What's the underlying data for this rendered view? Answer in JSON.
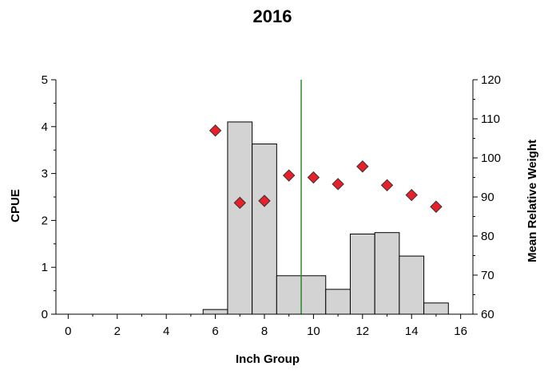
{
  "chart_data": {
    "type": "bar",
    "title": "2016",
    "xlabel": "Inch Group",
    "ylabel": "CPUE",
    "y2label": "Mean Relative Weight",
    "xlim": [
      -0.5,
      16.5
    ],
    "ylim": [
      0,
      5
    ],
    "y2lim": [
      60,
      120
    ],
    "x_ticks": [
      0,
      2,
      4,
      6,
      8,
      10,
      12,
      14,
      16
    ],
    "y_ticks": [
      0,
      1,
      2,
      3,
      4,
      5
    ],
    "y2_ticks": [
      60,
      70,
      80,
      90,
      100,
      110,
      120
    ],
    "grid": false,
    "series": [
      {
        "type": "bar",
        "axis": "left",
        "color": "#d3d3d3",
        "x": [
          6,
          7,
          8,
          9,
          10,
          11,
          12,
          13,
          14,
          15
        ],
        "values": [
          0.1,
          4.1,
          3.63,
          0.82,
          0.82,
          0.53,
          1.71,
          1.74,
          1.24,
          0.24
        ]
      },
      {
        "type": "scatter",
        "axis": "right",
        "marker": "diamond",
        "color": "#e8202a",
        "x": [
          6,
          7,
          8,
          9,
          10,
          11,
          12,
          13,
          14,
          15
        ],
        "values": [
          107,
          88.5,
          89,
          95.5,
          95,
          93.3,
          97.8,
          93,
          90.5,
          87.5
        ]
      }
    ],
    "reference_line": {
      "x": 9.5,
      "color": "#2e8b2e"
    }
  }
}
